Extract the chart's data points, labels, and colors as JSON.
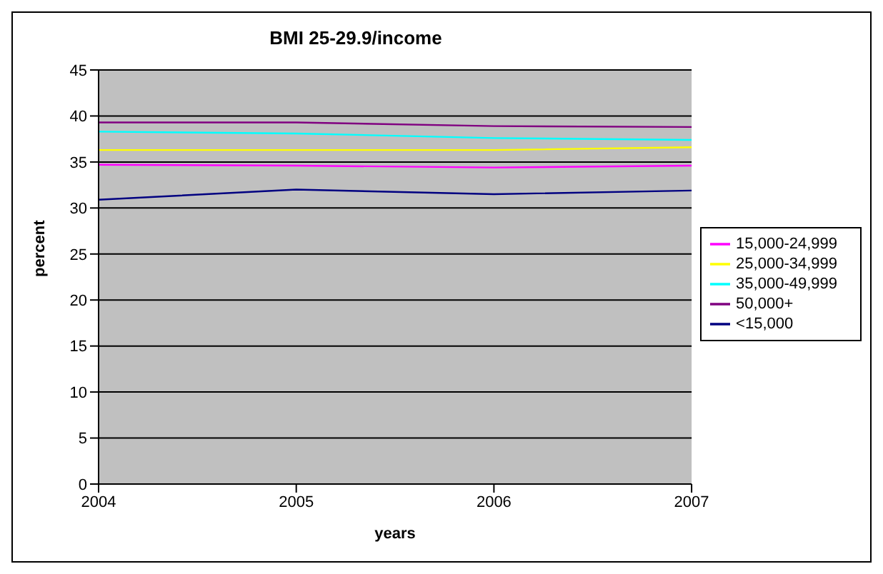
{
  "chart_data": {
    "type": "line",
    "title": "BMI 25-29.9/income",
    "xlabel": "years",
    "ylabel": "percent",
    "categories": [
      "2004",
      "2005",
      "2006",
      "2007"
    ],
    "series": [
      {
        "name": "<15,000",
        "color": "#000080",
        "values": [
          30.9,
          32,
          31.5,
          31.9
        ]
      },
      {
        "name": "15,000-24,999",
        "color": "#ff00ff",
        "values": [
          34.7,
          34.6,
          34.4,
          34.6
        ]
      },
      {
        "name": "25,000-34,999",
        "color": "#ffff00",
        "values": [
          36.3,
          36.3,
          36.3,
          36.6
        ]
      },
      {
        "name": "35,000-49,999",
        "color": "#00ffff",
        "values": [
          38.3,
          38.1,
          37.6,
          37.4
        ]
      },
      {
        "name": "50,000+",
        "color": "#800080",
        "values": [
          39.3,
          39.3,
          38.9,
          38.8
        ]
      }
    ],
    "ylim": [
      0,
      45
    ],
    "yticks": [
      0,
      5,
      10,
      15,
      20,
      25,
      30,
      35,
      40,
      45
    ],
    "grid": "y",
    "legend": "right",
    "marker": "none",
    "line_style": "solid"
  }
}
